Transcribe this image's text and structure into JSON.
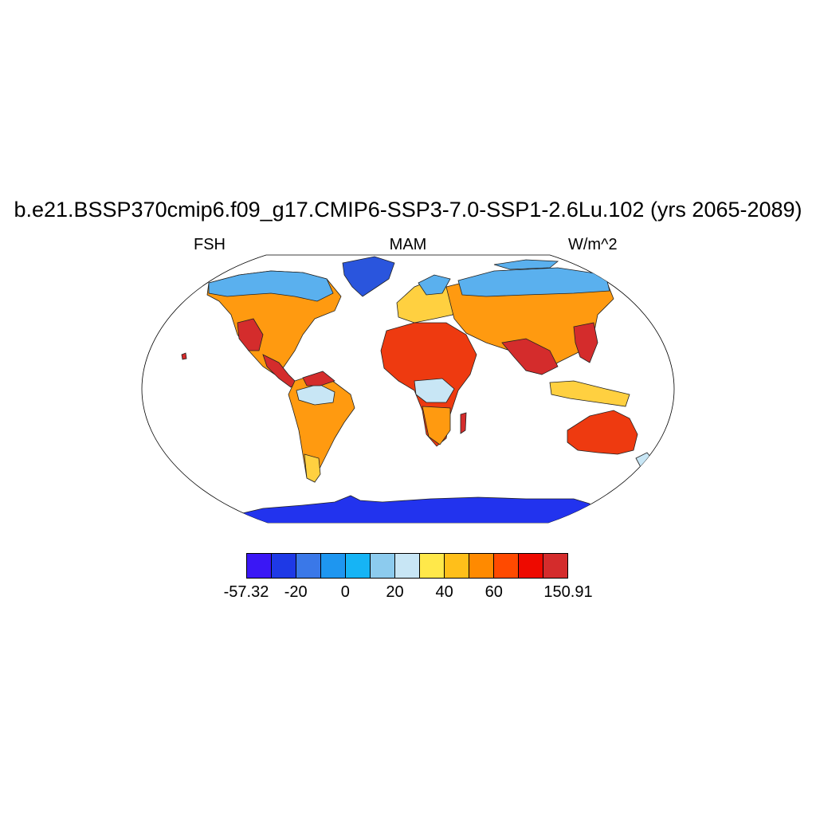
{
  "title": "b.e21.BSSP370cmip6.f09_g17.CMIP6-SSP3-7.0-SSP1-2.6Lu.102 (yrs 2065-2089)",
  "subtitle_left": "FSH",
  "subtitle_center": "MAM",
  "subtitle_right": "W/m^2",
  "colorbar": {
    "colors": [
      "#3a17f5",
      "#1e39e6",
      "#3a78e8",
      "#1e96f0",
      "#16b4f5",
      "#8ccbee",
      "#c8e6f5",
      "#ffe84a",
      "#ffbf1a",
      "#ff8a00",
      "#ff4a00",
      "#ee0a00",
      "#d42c2c"
    ],
    "labels": [
      "-57.32",
      "-20",
      "0",
      "20",
      "40",
      "60",
      "150.91"
    ]
  },
  "map_colors": {
    "ocean": "#ffffff",
    "antarctica": "#2233ee",
    "greenland": "#2a55dd",
    "arctic_land": "#5ab0ee",
    "temperate": "#ff9a10",
    "hot": "#ee3a10",
    "very_hot": "#d42c2c",
    "mild": "#ffd040",
    "cool": "#c8e6f5"
  }
}
